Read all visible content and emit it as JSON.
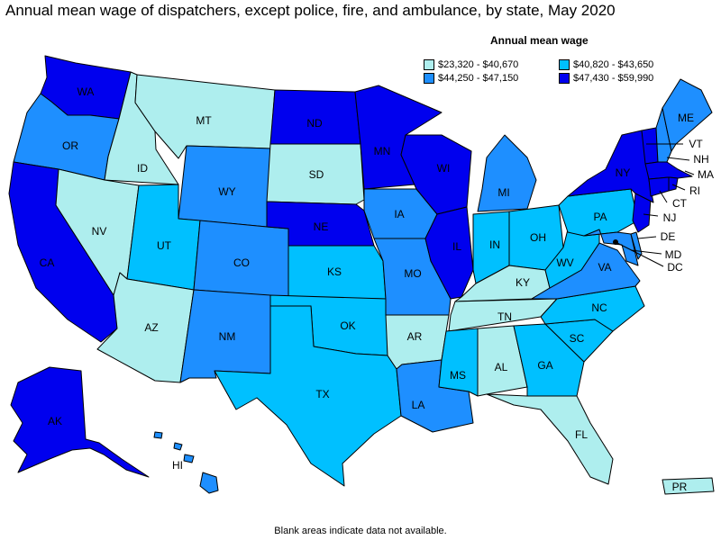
{
  "title": "Annual mean wage of dispatchers, except police, fire, and ambulance, by state, May 2020",
  "legend": {
    "title": "Annual mean wage",
    "ranges": [
      {
        "label": "$23,320 - $40,670",
        "color": "#aeeeee"
      },
      {
        "label": "$40,820 - $43,650",
        "color": "#00c0ff"
      },
      {
        "label": "$44,250 - $47,150",
        "color": "#1e8fff"
      },
      {
        "label": "$47,430 - $59,990",
        "color": "#0000ee"
      }
    ]
  },
  "footnote": "Blank areas indicate data not available.",
  "states": {
    "WA": {
      "label": "WA",
      "bin": 3
    },
    "OR": {
      "label": "OR",
      "bin": 2
    },
    "CA": {
      "label": "CA",
      "bin": 3
    },
    "ID": {
      "label": "ID",
      "bin": 0
    },
    "NV": {
      "label": "NV",
      "bin": 0
    },
    "MT": {
      "label": "MT",
      "bin": 0
    },
    "WY": {
      "label": "WY",
      "bin": 2
    },
    "UT": {
      "label": "UT",
      "bin": 1
    },
    "AZ": {
      "label": "AZ",
      "bin": 0
    },
    "CO": {
      "label": "CO",
      "bin": 2
    },
    "NM": {
      "label": "NM",
      "bin": 2
    },
    "ND": {
      "label": "ND",
      "bin": 3
    },
    "SD": {
      "label": "SD",
      "bin": 0
    },
    "NE": {
      "label": "NE",
      "bin": 3
    },
    "KS": {
      "label": "KS",
      "bin": 1
    },
    "OK": {
      "label": "OK",
      "bin": 1
    },
    "TX": {
      "label": "TX",
      "bin": 1
    },
    "MN": {
      "label": "MN",
      "bin": 3
    },
    "IA": {
      "label": "IA",
      "bin": 2
    },
    "MO": {
      "label": "MO",
      "bin": 2
    },
    "AR": {
      "label": "AR",
      "bin": 0
    },
    "LA": {
      "label": "LA",
      "bin": 2
    },
    "WI": {
      "label": "WI",
      "bin": 3
    },
    "IL": {
      "label": "IL",
      "bin": 3
    },
    "MI": {
      "label": "MI",
      "bin": 2
    },
    "IN": {
      "label": "IN",
      "bin": 1
    },
    "OH": {
      "label": "OH",
      "bin": 1
    },
    "KY": {
      "label": "KY",
      "bin": 0
    },
    "TN": {
      "label": "TN",
      "bin": 0
    },
    "MS": {
      "label": "MS",
      "bin": 1
    },
    "AL": {
      "label": "AL",
      "bin": 0
    },
    "GA": {
      "label": "GA",
      "bin": 1
    },
    "FL": {
      "label": "FL",
      "bin": 0
    },
    "SC": {
      "label": "SC",
      "bin": 1
    },
    "NC": {
      "label": "NC",
      "bin": 1
    },
    "VA": {
      "label": "VA",
      "bin": 2
    },
    "WV": {
      "label": "WV",
      "bin": 1
    },
    "PA": {
      "label": "PA",
      "bin": 1
    },
    "NY": {
      "label": "NY",
      "bin": 3
    },
    "VT": {
      "label": "VT",
      "bin": 3
    },
    "NH": {
      "label": "NH",
      "bin": 2
    },
    "ME": {
      "label": "ME",
      "bin": 2
    },
    "MA": {
      "label": "MA",
      "bin": 3
    },
    "RI": {
      "label": "RI",
      "bin": 3
    },
    "CT": {
      "label": "CT",
      "bin": 3
    },
    "NJ": {
      "label": "NJ",
      "bin": 3
    },
    "DE": {
      "label": "DE",
      "bin": 2
    },
    "MD": {
      "label": "MD",
      "bin": 2
    },
    "DC": {
      "label": "DC",
      "bin": 3
    },
    "AK": {
      "label": "AK",
      "bin": 3
    },
    "HI": {
      "label": "HI",
      "bin": 2
    },
    "PR": {
      "label": "PR",
      "bin": 0
    }
  }
}
